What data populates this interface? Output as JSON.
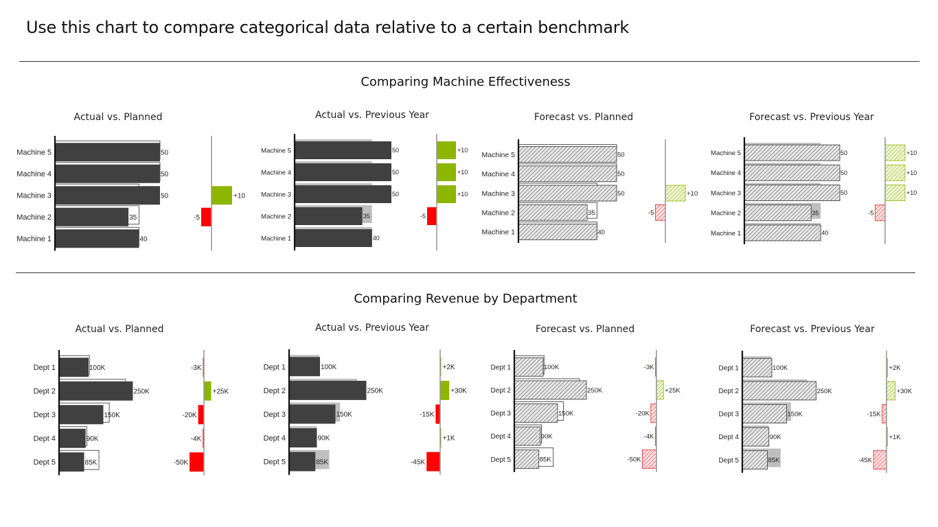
{
  "page": {
    "title": "Use this chart to compare categorical data relative to a certain benchmark"
  },
  "colors": {
    "actual": "#404040",
    "reference": "#bfbfbf",
    "positive": "#8db600",
    "negative": "#ff0000",
    "positive_light": "#c9e08a",
    "negative_light": "#ff9a9a",
    "axis": "#111111"
  },
  "sections": [
    {
      "title": "Comparing Machine Effectiveness",
      "panels": [
        {
          "title": "Actual vs. Planned",
          "label_size": "large"
        },
        {
          "title": "Actual vs. Previous Year",
          "label_size": "small"
        },
        {
          "title": "Forecast vs. Planned",
          "label_size": "large"
        },
        {
          "title": "Forecast vs. Previous Year",
          "label_size": "small"
        }
      ]
    },
    {
      "title": "Comparing Revenue by Department",
      "panels": [
        {
          "title": "Actual vs. Planned",
          "label_size": "large"
        },
        {
          "title": "Actual vs. Previous Year",
          "label_size": "large"
        },
        {
          "title": "Forecast vs. Planned",
          "label_size": "small"
        },
        {
          "title": "Forecast vs. Previous Year",
          "label_size": "small"
        }
      ]
    }
  ],
  "chart_data": [
    {
      "type": "bar",
      "title": "Actual vs. Planned",
      "group": "Comparing Machine Effectiveness",
      "style": "actual",
      "reference_style": "outline",
      "categories": [
        "Machine 5",
        "Machine 4",
        "Machine 3",
        "Machine 2",
        "Machine 1"
      ],
      "values": [
        50,
        50,
        50,
        35,
        40
      ],
      "value_labels": [
        "50",
        "50",
        "50",
        "35",
        "40"
      ],
      "reference": [
        50,
        50,
        40,
        40,
        40
      ],
      "variance": [
        null,
        null,
        10,
        -5,
        null
      ],
      "variance_labels": [
        "",
        "",
        "+10",
        "-5",
        ""
      ]
    },
    {
      "type": "bar",
      "title": "Actual vs. Previous Year",
      "group": "Comparing Machine Effectiveness",
      "style": "actual",
      "reference_style": "gray",
      "categories": [
        "Machine 5",
        "Machine 4",
        "Machine 3",
        "Machine 2",
        "Machine 1"
      ],
      "values": [
        50,
        50,
        50,
        35,
        40
      ],
      "value_labels": [
        "50",
        "50",
        "50",
        "35",
        "40"
      ],
      "reference": [
        40,
        40,
        40,
        40,
        40
      ],
      "variance": [
        10,
        10,
        10,
        -5,
        null
      ],
      "variance_labels": [
        "+10",
        "+10",
        "+10",
        "-5",
        ""
      ]
    },
    {
      "type": "bar",
      "title": "Forecast vs. Planned",
      "group": "Comparing Machine Effectiveness",
      "style": "forecast",
      "reference_style": "outline",
      "categories": [
        "Machine 5",
        "Machine 4",
        "Machine 3",
        "Machine 2",
        "Machine 1"
      ],
      "values": [
        50,
        50,
        50,
        35,
        40
      ],
      "value_labels": [
        "50",
        "50",
        "50",
        "35",
        "40"
      ],
      "reference": [
        50,
        50,
        40,
        40,
        40
      ],
      "variance": [
        null,
        null,
        10,
        -5,
        null
      ],
      "variance_labels": [
        "",
        "",
        "+10",
        "-5",
        ""
      ]
    },
    {
      "type": "bar",
      "title": "Forecast vs. Previous Year",
      "group": "Comparing Machine Effectiveness",
      "style": "forecast",
      "reference_style": "gray",
      "categories": [
        "Machine 5",
        "Machine 4",
        "Machine 3",
        "Machine 2",
        "Machine 1"
      ],
      "values": [
        50,
        50,
        50,
        35,
        40
      ],
      "value_labels": [
        "50",
        "50",
        "50",
        "35",
        "40"
      ],
      "reference": [
        40,
        40,
        40,
        40,
        40
      ],
      "variance": [
        10,
        10,
        10,
        -5,
        null
      ],
      "variance_labels": [
        "+10",
        "+10",
        "+10",
        "-5",
        ""
      ]
    },
    {
      "type": "bar",
      "title": "Actual vs. Planned",
      "group": "Comparing Revenue by Department",
      "style": "actual",
      "reference_style": "outline",
      "categories": [
        "Dept 1",
        "Dept 2",
        "Dept 3",
        "Dept 4",
        "Dept 5"
      ],
      "values": [
        100,
        250,
        150,
        90,
        85
      ],
      "value_labels": [
        "100K",
        "250K",
        "150K",
        "90K",
        "85K"
      ],
      "reference": [
        103,
        225,
        170,
        94,
        135
      ],
      "variance": [
        -3,
        25,
        -20,
        -4,
        -50
      ],
      "variance_labels": [
        "-3K",
        "+25K",
        "-20K",
        "-4K",
        "-50K"
      ]
    },
    {
      "type": "bar",
      "title": "Actual vs. Previous Year",
      "group": "Comparing Revenue by Department",
      "style": "actual",
      "reference_style": "gray",
      "categories": [
        "Dept 1",
        "Dept 2",
        "Dept 3",
        "Dept 4",
        "Dept 5"
      ],
      "values": [
        100,
        250,
        150,
        90,
        85
      ],
      "value_labels": [
        "100K",
        "250K",
        "150K",
        "90K",
        "85K"
      ],
      "reference": [
        98,
        220,
        165,
        89,
        130
      ],
      "variance": [
        2,
        30,
        -15,
        1,
        -45
      ],
      "variance_labels": [
        "+2K",
        "+30K",
        "-15K",
        "+1K",
        "-45K"
      ]
    },
    {
      "type": "bar",
      "title": "Forecast vs. Planned",
      "group": "Comparing Revenue by Department",
      "style": "forecast",
      "reference_style": "outline",
      "categories": [
        "Dept 1",
        "Dept 2",
        "Dept 3",
        "Dept 4",
        "Dept 5"
      ],
      "values": [
        100,
        250,
        150,
        90,
        85
      ],
      "value_labels": [
        "100K",
        "250K",
        "150K",
        "90K",
        "85K"
      ],
      "reference": [
        103,
        225,
        170,
        94,
        135
      ],
      "variance": [
        -3,
        25,
        -20,
        -4,
        -50
      ],
      "variance_labels": [
        "-3K",
        "+25K",
        "-20K",
        "-4K",
        "-50K"
      ]
    },
    {
      "type": "bar",
      "title": "Forecast vs. Previous Year",
      "group": "Comparing Revenue by Department",
      "style": "forecast",
      "reference_style": "gray",
      "categories": [
        "Dept 1",
        "Dept 2",
        "Dept 3",
        "Dept 4",
        "Dept 5"
      ],
      "values": [
        100,
        250,
        150,
        90,
        85
      ],
      "value_labels": [
        "100K",
        "250K",
        "150K",
        "90K",
        "85K"
      ],
      "reference": [
        98,
        220,
        165,
        89,
        130
      ],
      "variance": [
        2,
        30,
        -15,
        1,
        -45
      ],
      "variance_labels": [
        "+2K",
        "+30K",
        "-15K",
        "+1K",
        "-45K"
      ]
    }
  ]
}
